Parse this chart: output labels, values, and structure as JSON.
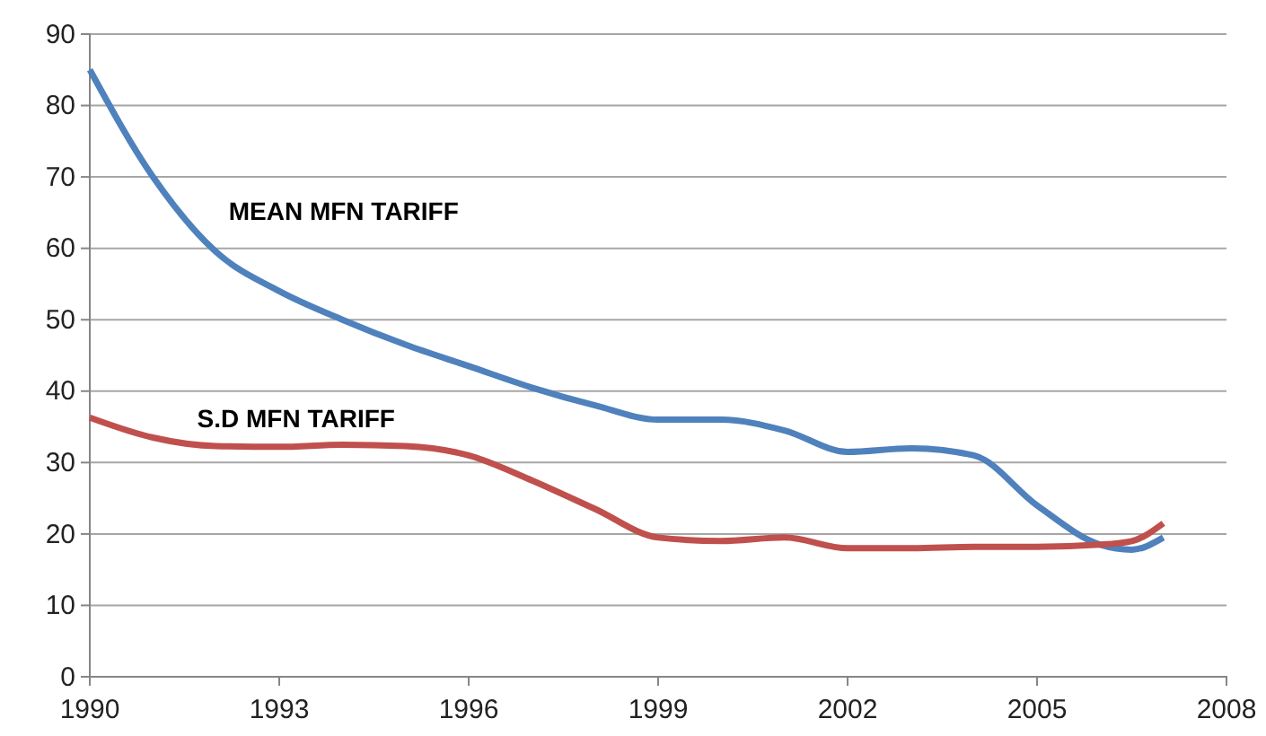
{
  "chart_data": {
    "type": "line",
    "x": [
      1990,
      1991,
      1992,
      1993,
      1994,
      1995,
      1996,
      1997,
      1998,
      1999,
      2000,
      2001,
      2002,
      2003,
      2004,
      2005,
      2006,
      2006.5,
      2007
    ],
    "series": [
      {
        "name": "MEAN MFN TARIFF",
        "color": "#4f81bd",
        "values": [
          85,
          70,
          59.5,
          54,
          50,
          46.5,
          43.5,
          40.5,
          38,
          36,
          36,
          34.5,
          31.5,
          32,
          31,
          24,
          18.5,
          17.8,
          19.5
        ]
      },
      {
        "name": "S.D MFN TARIFF",
        "color": "#c0504d",
        "values": [
          36.3,
          33.5,
          32.3,
          32.2,
          32.5,
          32.3,
          31,
          27.5,
          23.5,
          19.5,
          19,
          19.5,
          18,
          18,
          18.2,
          18.2,
          18.5,
          19,
          21.5
        ]
      }
    ],
    "xlim": [
      1990,
      2008
    ],
    "xticks": [
      1990,
      1993,
      1996,
      1999,
      2002,
      2005,
      2008
    ],
    "ylim": [
      0,
      90
    ],
    "yticks": [
      0,
      10,
      20,
      30,
      40,
      50,
      60,
      70,
      80,
      90
    ],
    "grid": "y",
    "legend": false,
    "marker": "none",
    "line_style": "solid"
  }
}
